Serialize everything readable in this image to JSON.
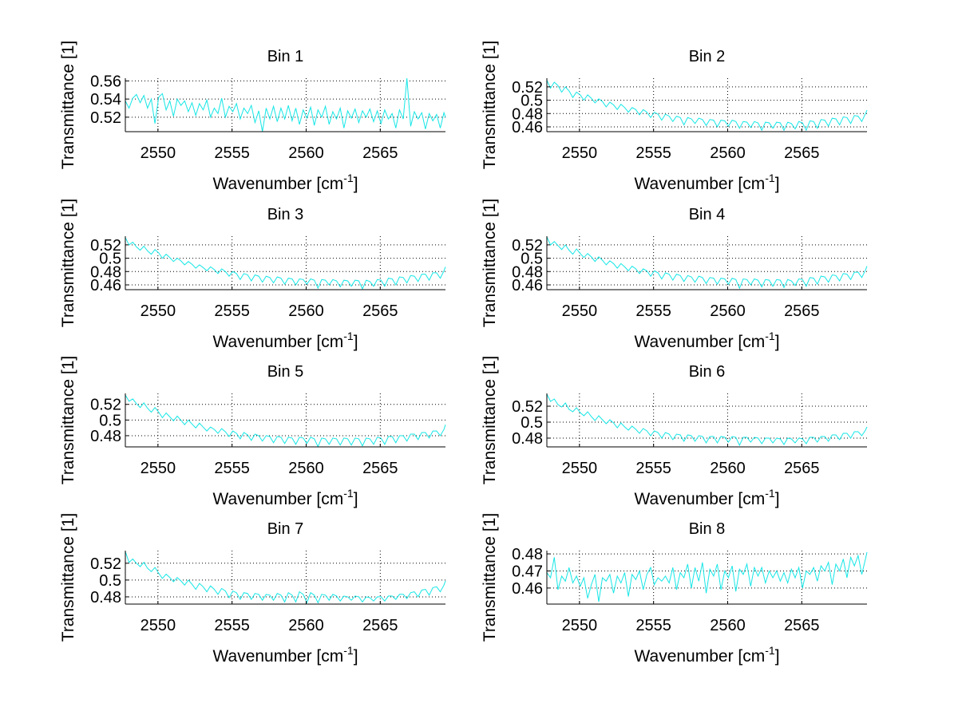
{
  "figure": {
    "background": "#ffffff",
    "line_color": "#16e6e6",
    "grid_style": "dotted"
  },
  "chart_data": [
    {
      "type": "line",
      "title": "Bin 1",
      "xlabel": "Wavenumber [cm",
      "xlabel_sup": "-1",
      "xlabel_close": "]",
      "ylabel": "Transmittance [1]",
      "xlim": [
        2547.8,
        2569.4
      ],
      "ylim": [
        0.504,
        0.563
      ],
      "xticks": [
        2550,
        2555,
        2560,
        2565
      ],
      "xtick_labels": [
        "2550",
        "2555",
        "2560",
        "2565"
      ],
      "yticks": [
        0.52,
        0.54,
        0.56
      ],
      "ytick_labels": [
        "0.52",
        "0.54",
        "0.56"
      ],
      "grid": true,
      "x_start": 2547.8,
      "x_step": 0.25,
      "series": [
        {
          "name": "Bin 1",
          "values": [
            0.538,
            0.53,
            0.541,
            0.545,
            0.536,
            0.544,
            0.53,
            0.54,
            0.513,
            0.542,
            0.546,
            0.528,
            0.538,
            0.521,
            0.54,
            0.533,
            0.538,
            0.526,
            0.536,
            0.522,
            0.535,
            0.528,
            0.539,
            0.52,
            0.53,
            0.524,
            0.541,
            0.52,
            0.532,
            0.526,
            0.535,
            0.518,
            0.53,
            0.524,
            0.533,
            0.514,
            0.527,
            0.504,
            0.53,
            0.518,
            0.532,
            0.515,
            0.53,
            0.518,
            0.533,
            0.516,
            0.53,
            0.512,
            0.528,
            0.519,
            0.531,
            0.511,
            0.528,
            0.52,
            0.532,
            0.512,
            0.526,
            0.518,
            0.53,
            0.508,
            0.527,
            0.519,
            0.529,
            0.514,
            0.527,
            0.52,
            0.529,
            0.515,
            0.527,
            0.513,
            0.528,
            0.518,
            0.524,
            0.508,
            0.528,
            0.518,
            0.563,
            0.51,
            0.526,
            0.518,
            0.525,
            0.507,
            0.524,
            0.516,
            0.523,
            0.508,
            0.525,
            0.52
          ]
        }
      ]
    },
    {
      "type": "line",
      "title": "Bin 2",
      "xlabel": "Wavenumber [cm",
      "xlabel_sup": "-1",
      "xlabel_close": "]",
      "ylabel": "Transmittance [1]",
      "xlim": [
        2547.8,
        2569.4
      ],
      "ylim": [
        0.4528,
        0.533
      ],
      "xticks": [
        2550,
        2555,
        2560,
        2565
      ],
      "xtick_labels": [
        "2550",
        "2555",
        "2560",
        "2565"
      ],
      "yticks": [
        0.46,
        0.48,
        0.5,
        0.52
      ],
      "ytick_labels": [
        "0.46",
        "0.48",
        "0.5",
        "0.52"
      ],
      "grid": true,
      "x_start": 2547.8,
      "x_step": 0.25,
      "series": [
        {
          "name": "Bin 2",
          "values": [
            0.53,
            0.518,
            0.527,
            0.522,
            0.512,
            0.52,
            0.514,
            0.504,
            0.512,
            0.508,
            0.5,
            0.508,
            0.503,
            0.496,
            0.502,
            0.498,
            0.49,
            0.497,
            0.493,
            0.486,
            0.494,
            0.489,
            0.482,
            0.489,
            0.486,
            0.478,
            0.486,
            0.482,
            0.474,
            0.482,
            0.479,
            0.47,
            0.479,
            0.476,
            0.468,
            0.476,
            0.474,
            0.463,
            0.474,
            0.472,
            0.465,
            0.473,
            0.471,
            0.462,
            0.471,
            0.47,
            0.46,
            0.47,
            0.469,
            0.461,
            0.47,
            0.468,
            0.458,
            0.468,
            0.467,
            0.459,
            0.468,
            0.466,
            0.455,
            0.467,
            0.466,
            0.458,
            0.467,
            0.466,
            0.455,
            0.467,
            0.465,
            0.457,
            0.468,
            0.466,
            0.455,
            0.469,
            0.468,
            0.458,
            0.471,
            0.47,
            0.461,
            0.473,
            0.472,
            0.463,
            0.475,
            0.474,
            0.465,
            0.477,
            0.476,
            0.468,
            0.48,
            0.485
          ]
        }
      ]
    },
    {
      "type": "line",
      "title": "Bin 3",
      "xlabel": "Wavenumber [cm",
      "xlabel_sup": "-1",
      "xlabel_close": "]",
      "ylabel": "Transmittance [1]",
      "xlim": [
        2547.8,
        2569.4
      ],
      "ylim": [
        0.4528,
        0.533
      ],
      "xticks": [
        2550,
        2555,
        2560,
        2565
      ],
      "xtick_labels": [
        "2550",
        "2555",
        "2560",
        "2565"
      ],
      "yticks": [
        0.46,
        0.48,
        0.5,
        0.52
      ],
      "ytick_labels": [
        "0.46",
        "0.48",
        "0.5",
        "0.52"
      ],
      "grid": true,
      "x_start": 2547.8,
      "x_step": 0.25,
      "series": [
        {
          "name": "Bin 3",
          "values": [
            0.531,
            0.52,
            0.524,
            0.517,
            0.512,
            0.518,
            0.511,
            0.506,
            0.513,
            0.508,
            0.5,
            0.506,
            0.501,
            0.495,
            0.5,
            0.496,
            0.49,
            0.495,
            0.491,
            0.485,
            0.49,
            0.486,
            0.481,
            0.487,
            0.483,
            0.477,
            0.484,
            0.48,
            0.473,
            0.48,
            0.477,
            0.468,
            0.477,
            0.475,
            0.466,
            0.475,
            0.473,
            0.464,
            0.473,
            0.471,
            0.463,
            0.472,
            0.47,
            0.461,
            0.47,
            0.469,
            0.46,
            0.469,
            0.468,
            0.461,
            0.469,
            0.467,
            0.455,
            0.468,
            0.467,
            0.46,
            0.468,
            0.466,
            0.457,
            0.467,
            0.466,
            0.458,
            0.467,
            0.466,
            0.454,
            0.467,
            0.465,
            0.458,
            0.468,
            0.467,
            0.458,
            0.47,
            0.469,
            0.46,
            0.472,
            0.471,
            0.463,
            0.474,
            0.473,
            0.465,
            0.476,
            0.476,
            0.467,
            0.478,
            0.478,
            0.47,
            0.481,
            0.487
          ]
        }
      ]
    },
    {
      "type": "line",
      "title": "Bin 4",
      "xlabel": "Wavenumber [cm",
      "xlabel_sup": "-1",
      "xlabel_close": "]",
      "ylabel": "Transmittance [1]",
      "xlim": [
        2547.8,
        2569.4
      ],
      "ylim": [
        0.4528,
        0.533
      ],
      "xticks": [
        2550,
        2555,
        2560,
        2565
      ],
      "xtick_labels": [
        "2550",
        "2555",
        "2560",
        "2565"
      ],
      "yticks": [
        0.46,
        0.48,
        0.5,
        0.52
      ],
      "ytick_labels": [
        "0.46",
        "0.48",
        "0.5",
        "0.52"
      ],
      "grid": true,
      "x_start": 2547.8,
      "x_step": 0.25,
      "series": [
        {
          "name": "Bin 4",
          "values": [
            0.532,
            0.52,
            0.525,
            0.519,
            0.513,
            0.52,
            0.512,
            0.506,
            0.514,
            0.507,
            0.501,
            0.507,
            0.502,
            0.495,
            0.502,
            0.497,
            0.49,
            0.496,
            0.492,
            0.485,
            0.492,
            0.487,
            0.481,
            0.488,
            0.484,
            0.477,
            0.484,
            0.481,
            0.473,
            0.481,
            0.478,
            0.469,
            0.478,
            0.476,
            0.467,
            0.476,
            0.474,
            0.465,
            0.474,
            0.472,
            0.464,
            0.473,
            0.471,
            0.462,
            0.471,
            0.47,
            0.461,
            0.47,
            0.469,
            0.461,
            0.47,
            0.468,
            0.455,
            0.469,
            0.468,
            0.46,
            0.469,
            0.467,
            0.457,
            0.468,
            0.467,
            0.458,
            0.468,
            0.467,
            0.456,
            0.468,
            0.466,
            0.459,
            0.469,
            0.468,
            0.458,
            0.471,
            0.47,
            0.461,
            0.473,
            0.472,
            0.464,
            0.475,
            0.474,
            0.466,
            0.477,
            0.476,
            0.468,
            0.479,
            0.479,
            0.471,
            0.482,
            0.488
          ]
        }
      ]
    },
    {
      "type": "line",
      "title": "Bin 5",
      "xlabel": "Wavenumber [cm",
      "xlabel_sup": "-1",
      "xlabel_close": "]",
      "ylabel": "Transmittance [1]",
      "xlim": [
        2547.8,
        2569.4
      ],
      "ylim": [
        0.4657,
        0.534
      ],
      "xticks": [
        2550,
        2555,
        2560,
        2565
      ],
      "xtick_labels": [
        "2550",
        "2555",
        "2560",
        "2565"
      ],
      "yticks": [
        0.48,
        0.5,
        0.52
      ],
      "ytick_labels": [
        "0.48",
        "0.5",
        "0.52"
      ],
      "grid": true,
      "x_start": 2547.8,
      "x_step": 0.25,
      "series": [
        {
          "name": "Bin 5",
          "values": [
            0.532,
            0.524,
            0.527,
            0.521,
            0.516,
            0.522,
            0.515,
            0.51,
            0.516,
            0.51,
            0.503,
            0.509,
            0.504,
            0.499,
            0.505,
            0.5,
            0.494,
            0.5,
            0.495,
            0.49,
            0.496,
            0.491,
            0.486,
            0.491,
            0.488,
            0.483,
            0.489,
            0.485,
            0.479,
            0.486,
            0.483,
            0.476,
            0.484,
            0.481,
            0.474,
            0.482,
            0.48,
            0.473,
            0.48,
            0.479,
            0.471,
            0.479,
            0.478,
            0.47,
            0.478,
            0.477,
            0.469,
            0.478,
            0.477,
            0.47,
            0.478,
            0.476,
            0.466,
            0.477,
            0.476,
            0.469,
            0.477,
            0.476,
            0.468,
            0.477,
            0.476,
            0.468,
            0.477,
            0.476,
            0.467,
            0.477,
            0.476,
            0.469,
            0.478,
            0.477,
            0.469,
            0.479,
            0.479,
            0.471,
            0.48,
            0.48,
            0.473,
            0.482,
            0.482,
            0.475,
            0.484,
            0.484,
            0.477,
            0.486,
            0.486,
            0.48,
            0.488,
            0.494
          ]
        }
      ]
    },
    {
      "type": "line",
      "title": "Bin 6",
      "xlabel": "Wavenumber [cm",
      "xlabel_sup": "-1",
      "xlabel_close": "]",
      "ylabel": "Transmittance [1]",
      "xlim": [
        2547.8,
        2569.4
      ],
      "ylim": [
        0.469,
        0.536
      ],
      "xticks": [
        2550,
        2555,
        2560,
        2565
      ],
      "xtick_labels": [
        "2550",
        "2555",
        "2560",
        "2565"
      ],
      "yticks": [
        0.48,
        0.5,
        0.52
      ],
      "ytick_labels": [
        "0.48",
        "0.5",
        "0.52"
      ],
      "grid": true,
      "x_start": 2547.8,
      "x_step": 0.25,
      "series": [
        {
          "name": "Bin 6",
          "values": [
            0.535,
            0.526,
            0.529,
            0.522,
            0.519,
            0.524,
            0.516,
            0.513,
            0.518,
            0.512,
            0.508,
            0.513,
            0.507,
            0.502,
            0.508,
            0.503,
            0.498,
            0.503,
            0.499,
            0.493,
            0.499,
            0.494,
            0.49,
            0.495,
            0.491,
            0.486,
            0.492,
            0.489,
            0.483,
            0.489,
            0.487,
            0.48,
            0.487,
            0.485,
            0.478,
            0.485,
            0.484,
            0.476,
            0.484,
            0.483,
            0.476,
            0.483,
            0.482,
            0.474,
            0.482,
            0.482,
            0.474,
            0.482,
            0.481,
            0.475,
            0.482,
            0.481,
            0.471,
            0.481,
            0.481,
            0.475,
            0.481,
            0.48,
            0.473,
            0.48,
            0.48,
            0.474,
            0.48,
            0.479,
            0.472,
            0.48,
            0.479,
            0.474,
            0.48,
            0.479,
            0.473,
            0.481,
            0.481,
            0.475,
            0.482,
            0.482,
            0.476,
            0.484,
            0.484,
            0.478,
            0.486,
            0.486,
            0.48,
            0.488,
            0.488,
            0.483,
            0.49,
            0.494
          ]
        }
      ]
    },
    {
      "type": "line",
      "title": "Bin 7",
      "xlabel": "Wavenumber [cm",
      "xlabel_sup": "-1",
      "xlabel_close": "]",
      "ylabel": "Transmittance [1]",
      "xlim": [
        2547.8,
        2569.4
      ],
      "ylim": [
        0.4714,
        0.535
      ],
      "xticks": [
        2550,
        2555,
        2560,
        2565
      ],
      "xtick_labels": [
        "2550",
        "2555",
        "2560",
        "2565"
      ],
      "yticks": [
        0.48,
        0.5,
        0.52
      ],
      "ytick_labels": [
        "0.48",
        "0.5",
        "0.52"
      ],
      "grid": true,
      "x_start": 2547.8,
      "x_step": 0.25,
      "series": [
        {
          "name": "Bin 7",
          "values": [
            0.534,
            0.521,
            0.525,
            0.52,
            0.516,
            0.521,
            0.514,
            0.51,
            0.515,
            0.508,
            0.502,
            0.507,
            0.503,
            0.498,
            0.503,
            0.499,
            0.494,
            0.5,
            0.495,
            0.489,
            0.496,
            0.492,
            0.486,
            0.493,
            0.489,
            0.483,
            0.49,
            0.487,
            0.479,
            0.487,
            0.485,
            0.477,
            0.485,
            0.484,
            0.477,
            0.484,
            0.483,
            0.476,
            0.483,
            0.482,
            0.476,
            0.484,
            0.482,
            0.474,
            0.485,
            0.482,
            0.474,
            0.486,
            0.483,
            0.473,
            0.485,
            0.482,
            0.473,
            0.483,
            0.482,
            0.476,
            0.483,
            0.481,
            0.475,
            0.481,
            0.48,
            0.476,
            0.481,
            0.48,
            0.474,
            0.48,
            0.479,
            0.475,
            0.48,
            0.48,
            0.475,
            0.481,
            0.481,
            0.477,
            0.483,
            0.483,
            0.478,
            0.485,
            0.486,
            0.48,
            0.488,
            0.489,
            0.482,
            0.491,
            0.492,
            0.486,
            0.494,
            0.499
          ]
        }
      ]
    },
    {
      "type": "line",
      "title": "Bin 8",
      "xlabel": "Wavenumber [cm",
      "xlabel_sup": "-1",
      "xlabel_close": "]",
      "ylabel": "Transmittance [1]",
      "xlim": [
        2547.8,
        2569.4
      ],
      "ylim": [
        0.4506,
        0.4819
      ],
      "xticks": [
        2550,
        2555,
        2560,
        2565
      ],
      "xtick_labels": [
        "2550",
        "2555",
        "2560",
        "2565"
      ],
      "yticks": [
        0.46,
        0.47,
        0.48
      ],
      "ytick_labels": [
        "0.46",
        "0.47",
        "0.48"
      ],
      "grid": true,
      "x_start": 2547.8,
      "x_step": 0.25,
      "series": [
        {
          "name": "Bin 8",
          "values": [
            0.469,
            0.466,
            0.478,
            0.459,
            0.467,
            0.464,
            0.472,
            0.463,
            0.467,
            0.461,
            0.466,
            0.454,
            0.462,
            0.468,
            0.452,
            0.466,
            0.464,
            0.468,
            0.457,
            0.467,
            0.463,
            0.469,
            0.455,
            0.468,
            0.465,
            0.47,
            0.459,
            0.468,
            0.472,
            0.462,
            0.466,
            0.464,
            0.467,
            0.463,
            0.472,
            0.459,
            0.469,
            0.466,
            0.474,
            0.46,
            0.472,
            0.464,
            0.475,
            0.457,
            0.471,
            0.467,
            0.474,
            0.459,
            0.47,
            0.466,
            0.473,
            0.458,
            0.471,
            0.468,
            0.474,
            0.461,
            0.472,
            0.467,
            0.472,
            0.463,
            0.47,
            0.466,
            0.47,
            0.464,
            0.469,
            0.463,
            0.471,
            0.466,
            0.472,
            0.46,
            0.47,
            0.468,
            0.472,
            0.464,
            0.473,
            0.47,
            0.475,
            0.462,
            0.474,
            0.47,
            0.477,
            0.466,
            0.478,
            0.473,
            0.479,
            0.468,
            0.477,
            0.481
          ]
        }
      ]
    }
  ]
}
